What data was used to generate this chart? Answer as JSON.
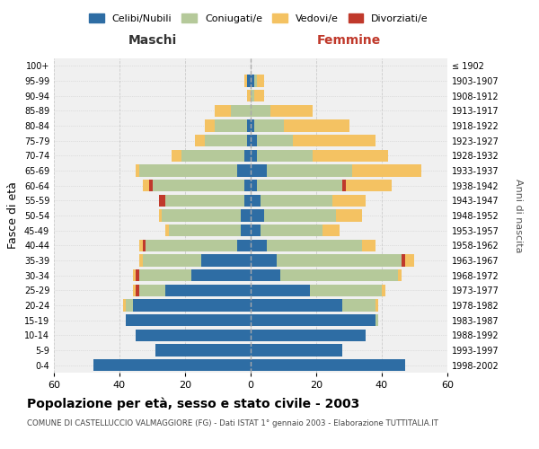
{
  "age_groups": [
    "0-4",
    "5-9",
    "10-14",
    "15-19",
    "20-24",
    "25-29",
    "30-34",
    "35-39",
    "40-44",
    "45-49",
    "50-54",
    "55-59",
    "60-64",
    "65-69",
    "70-74",
    "75-79",
    "80-84",
    "85-89",
    "90-94",
    "95-99",
    "100+"
  ],
  "birth_years": [
    "1998-2002",
    "1993-1997",
    "1988-1992",
    "1983-1987",
    "1978-1982",
    "1973-1977",
    "1968-1972",
    "1963-1967",
    "1958-1962",
    "1953-1957",
    "1948-1952",
    "1943-1947",
    "1938-1942",
    "1933-1937",
    "1928-1932",
    "1923-1927",
    "1918-1922",
    "1913-1917",
    "1908-1912",
    "1903-1907",
    "≤ 1902"
  ],
  "maschi": {
    "celibi": [
      48,
      29,
      35,
      38,
      36,
      26,
      18,
      15,
      4,
      3,
      3,
      2,
      2,
      4,
      2,
      1,
      1,
      0,
      0,
      1,
      0
    ],
    "coniugati": [
      0,
      0,
      0,
      0,
      2,
      8,
      16,
      18,
      28,
      22,
      24,
      24,
      28,
      30,
      19,
      13,
      10,
      6,
      0,
      0,
      0
    ],
    "vedovi": [
      0,
      0,
      0,
      0,
      1,
      1,
      1,
      1,
      1,
      1,
      1,
      0,
      2,
      1,
      3,
      3,
      3,
      5,
      1,
      1,
      0
    ],
    "divorziati": [
      0,
      0,
      0,
      0,
      0,
      1,
      1,
      0,
      1,
      0,
      0,
      2,
      1,
      0,
      0,
      0,
      0,
      0,
      0,
      0,
      0
    ]
  },
  "femmine": {
    "nubili": [
      47,
      28,
      35,
      38,
      28,
      18,
      9,
      8,
      5,
      3,
      4,
      3,
      2,
      5,
      2,
      2,
      1,
      0,
      0,
      1,
      0
    ],
    "coniugate": [
      0,
      0,
      0,
      1,
      10,
      22,
      36,
      38,
      29,
      19,
      22,
      22,
      26,
      26,
      17,
      11,
      9,
      6,
      1,
      1,
      0
    ],
    "vedove": [
      0,
      0,
      0,
      0,
      1,
      1,
      1,
      3,
      4,
      5,
      8,
      10,
      14,
      21,
      23,
      25,
      20,
      13,
      3,
      2,
      0
    ],
    "divorziate": [
      0,
      0,
      0,
      0,
      0,
      0,
      0,
      1,
      0,
      0,
      0,
      0,
      1,
      0,
      0,
      0,
      0,
      0,
      0,
      0,
      0
    ]
  },
  "color_celibi": "#2e6da4",
  "color_coniugati": "#b5c99a",
  "color_vedovi": "#f4c262",
  "color_divorziati": "#c0392b",
  "xlim": 60,
  "title": "Popolazione per età, sesso e stato civile - 2003",
  "subtitle": "COMUNE DI CASTELLUCCIO VALMAGGIORE (FG) - Dati ISTAT 1° gennaio 2003 - Elaborazione TUTTITALIA.IT",
  "ylabel_left": "Fasce di età",
  "ylabel_right": "Anni di nascita",
  "xlabel_maschi": "Maschi",
  "xlabel_femmine": "Femmine",
  "legend_labels": [
    "Celibi/Nubili",
    "Coniugati/e",
    "Vedovi/e",
    "Divorziati/e"
  ],
  "xticks": [
    60,
    40,
    20,
    0,
    20,
    40,
    60
  ]
}
